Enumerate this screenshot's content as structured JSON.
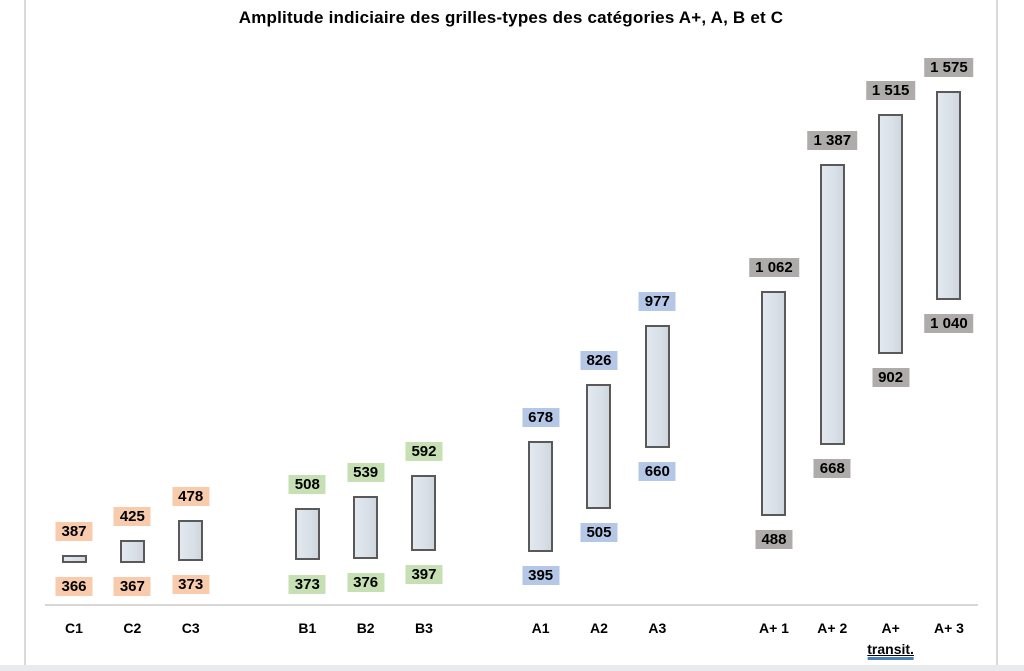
{
  "chart_data": {
    "type": "bar",
    "subtype": "floating-range-bars",
    "title": "Amplitude indiciaire des grilles-types des catégories A+, A, B et C",
    "xlabel": "",
    "ylabel": "",
    "y_axis_visible": false,
    "grid": false,
    "legend": false,
    "value_range_shown": [
      366,
      1575
    ],
    "bar_fill_color": "#DAE1E9",
    "bar_border_color": "#595959",
    "categories": [
      "C1",
      "C2",
      "C3",
      "B1",
      "B2",
      "B3",
      "A1",
      "A2",
      "A3",
      "A+ 1",
      "A+ 2",
      "A+ transit.",
      "A+ 3"
    ],
    "groups": [
      {
        "name": "C",
        "label_color": "#F8CBAD",
        "bars": [
          {
            "id": "C1",
            "axis_label": "C1",
            "min": 366,
            "max": 387,
            "min_label": "366",
            "max_label": "387"
          },
          {
            "id": "C2",
            "axis_label": "C2",
            "min": 367,
            "max": 425,
            "min_label": "367",
            "max_label": "425"
          },
          {
            "id": "C3",
            "axis_label": "C3",
            "min": 373,
            "max": 478,
            "min_label": "373",
            "max_label": "478"
          }
        ]
      },
      {
        "name": "B",
        "label_color": "#C6E0B4",
        "bars": [
          {
            "id": "B1",
            "axis_label": "B1",
            "min": 373,
            "max": 508,
            "min_label": "373",
            "max_label": "508"
          },
          {
            "id": "B2",
            "axis_label": "B2",
            "min": 376,
            "max": 539,
            "min_label": "376",
            "max_label": "539"
          },
          {
            "id": "B3",
            "axis_label": "B3",
            "min": 397,
            "max": 592,
            "min_label": "397",
            "max_label": "592"
          }
        ]
      },
      {
        "name": "A",
        "label_color": "#B4C7E7",
        "bars": [
          {
            "id": "A1",
            "axis_label": "A1",
            "min": 395,
            "max": 678,
            "min_label": "395",
            "max_label": "678"
          },
          {
            "id": "A2",
            "axis_label": "A2",
            "min": 505,
            "max": 826,
            "min_label": "505",
            "max_label": "826"
          },
          {
            "id": "A3",
            "axis_label": "A3",
            "min": 660,
            "max": 977,
            "min_label": "660",
            "max_label": "977"
          }
        ]
      },
      {
        "name": "A+",
        "label_color": "#AFABAB",
        "bars": [
          {
            "id": "Aplus1",
            "axis_label": "A+ 1",
            "min": 488,
            "max": 1062,
            "min_label": "488",
            "max_label": "1 062"
          },
          {
            "id": "Aplus2",
            "axis_label": "A+ 2",
            "min": 668,
            "max": 1387,
            "min_label": "668",
            "max_label": "1 387"
          },
          {
            "id": "AplusTransit",
            "axis_label": [
              "A+",
              "transit."
            ],
            "underline_line2": true,
            "min": 902,
            "max": 1515,
            "min_label": "902",
            "max_label": "1 515"
          },
          {
            "id": "Aplus3",
            "axis_label": "A+ 3",
            "min": 1040,
            "max": 1575,
            "min_label": "1 040",
            "max_label": "1 575"
          }
        ]
      }
    ]
  }
}
